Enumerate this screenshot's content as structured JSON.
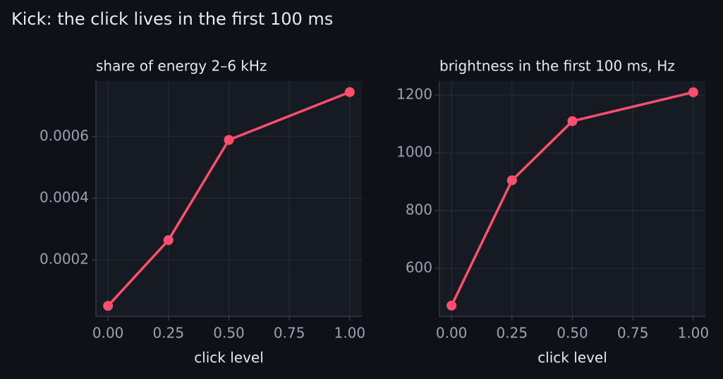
{
  "title": "Kick: the click lives in the first 100 ms",
  "chart_data": [
    {
      "type": "line",
      "title": "share of energy 2–6 kHz",
      "xlabel": "click level",
      "x": [
        0,
        0.25,
        0.5,
        1.0
      ],
      "values": [
        5.1e-05,
        0.000264,
        0.000589,
        0.000744
      ],
      "color": "#ff4f6d",
      "xlim": [
        -0.05,
        1.05
      ],
      "xticks": [
        {
          "value": 0,
          "label": "0.00"
        },
        {
          "value": 0.25,
          "label": "0.25"
        },
        {
          "value": 0.5,
          "label": "0.50"
        },
        {
          "value": 0.75,
          "label": "0.75"
        },
        {
          "value": 1,
          "label": "1.00"
        }
      ],
      "ylim": [
        1.71e-05,
        0.00078
      ],
      "yticks": [
        0.0002,
        0.0004,
        0.0006
      ],
      "grid": true
    },
    {
      "type": "line",
      "title": "brightness in the first 100 ms, Hz",
      "xlabel": "click level",
      "x": [
        0,
        0.25,
        0.5,
        1.0
      ],
      "values": [
        471,
        905,
        1110,
        1210
      ],
      "color": "#ff4f6d",
      "xlim": [
        -0.05,
        1.05
      ],
      "xticks": [
        {
          "value": 0,
          "label": "0.00"
        },
        {
          "value": 0.25,
          "label": "0.25"
        },
        {
          "value": 0.5,
          "label": "0.50"
        },
        {
          "value": 0.75,
          "label": "0.75"
        },
        {
          "value": 1,
          "label": "1.00"
        }
      ],
      "ylim": [
        434,
        1249
      ],
      "yticks": [
        600,
        800,
        1000,
        1200
      ],
      "grid": true
    }
  ]
}
